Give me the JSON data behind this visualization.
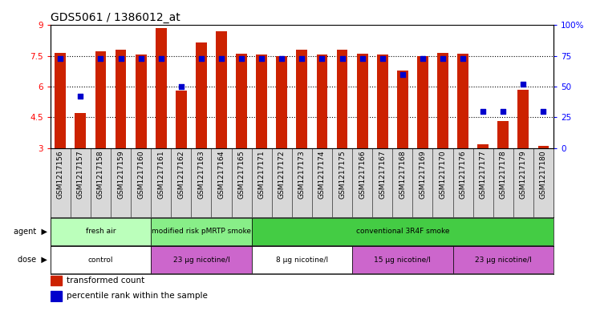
{
  "title": "GDS5061 / 1386012_at",
  "samples": [
    "GSM1217156",
    "GSM1217157",
    "GSM1217158",
    "GSM1217159",
    "GSM1217160",
    "GSM1217161",
    "GSM1217162",
    "GSM1217163",
    "GSM1217164",
    "GSM1217165",
    "GSM1217171",
    "GSM1217172",
    "GSM1217173",
    "GSM1217174",
    "GSM1217175",
    "GSM1217166",
    "GSM1217167",
    "GSM1217168",
    "GSM1217169",
    "GSM1217170",
    "GSM1217176",
    "GSM1217177",
    "GSM1217178",
    "GSM1217179",
    "GSM1217180"
  ],
  "bar_values": [
    7.65,
    4.72,
    7.72,
    7.82,
    7.58,
    8.85,
    5.8,
    8.15,
    8.72,
    7.62,
    7.55,
    7.5,
    7.8,
    7.55,
    7.8,
    7.62,
    7.58,
    6.8,
    7.5,
    7.65,
    7.62,
    3.2,
    4.32,
    5.85,
    3.1
  ],
  "percentile_values": [
    73,
    42,
    73,
    73,
    73,
    73,
    50,
    73,
    73,
    73,
    73,
    73,
    73,
    73,
    73,
    73,
    73,
    60,
    73,
    73,
    73,
    30,
    30,
    52,
    30
  ],
  "ylim_left": [
    3,
    9
  ],
  "ylim_right": [
    0,
    100
  ],
  "yticks_left": [
    3,
    4.5,
    6,
    7.5,
    9
  ],
  "yticks_right": [
    0,
    25,
    50,
    75,
    100
  ],
  "bar_color": "#cc2200",
  "dot_color": "#0000cc",
  "agent_groups": [
    {
      "label": "fresh air",
      "start": 0,
      "end": 5,
      "color": "#bbffbb"
    },
    {
      "label": "modified risk pMRTP smoke",
      "start": 5,
      "end": 10,
      "color": "#88ee88"
    },
    {
      "label": "conventional 3R4F smoke",
      "start": 10,
      "end": 25,
      "color": "#44cc44"
    }
  ],
  "dose_groups": [
    {
      "label": "control",
      "start": 0,
      "end": 5,
      "color": "#ffffff"
    },
    {
      "label": "23 μg nicotine/l",
      "start": 5,
      "end": 10,
      "color": "#cc66cc"
    },
    {
      "label": "8 μg nicotine/l",
      "start": 10,
      "end": 15,
      "color": "#ffffff"
    },
    {
      "label": "15 μg nicotine/l",
      "start": 15,
      "end": 20,
      "color": "#cc66cc"
    },
    {
      "label": "23 μg nicotine/l",
      "start": 20,
      "end": 25,
      "color": "#cc66cc"
    }
  ],
  "legend_bar_label": "transformed count",
  "legend_dot_label": "percentile rank within the sample",
  "title_fontsize": 10,
  "tick_fontsize": 6.5,
  "label_fontsize": 7.5
}
